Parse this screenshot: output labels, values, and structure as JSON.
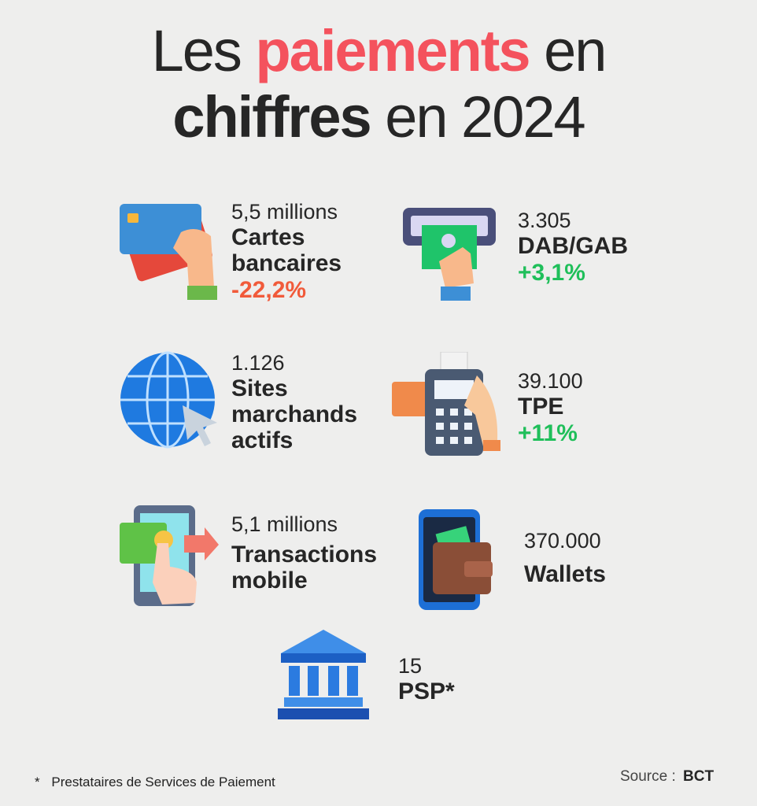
{
  "title": {
    "line1_prefix": "Les",
    "line1_accent": "paiements",
    "line1_suffix": "en",
    "line2_bold": "chiffres",
    "line2_rest": "en 2024"
  },
  "colors": {
    "accent": "#f4525d",
    "negative": "#f15a3a",
    "positive": "#1fbf5a"
  },
  "stats": [
    {
      "icon": "credit-card-icon",
      "value": "5,5 millions",
      "label1": "Cartes",
      "label2": "bancaires",
      "change": "-22,2%"
    },
    {
      "icon": "atm-icon",
      "value": "3.305",
      "label1": "DAB/GAB",
      "change": "+3,1%"
    },
    {
      "icon": "globe-icon",
      "value": "1.126",
      "label1": "Sites",
      "label2": "marchands",
      "label3": "actifs"
    },
    {
      "icon": "payment-terminal-icon",
      "value": "39.100",
      "label1": "TPE",
      "change": "+11%"
    },
    {
      "icon": "mobile-transfer-icon",
      "value": "5,1 millions",
      "label1": "Transactions",
      "label2": "mobile"
    },
    {
      "icon": "wallet-icon",
      "value": "370.000",
      "label1": "Wallets"
    },
    {
      "icon": "bank-icon",
      "value": "15",
      "label1": "PSP*"
    }
  ],
  "footer": {
    "asterisk": "*",
    "note": "Prestataires de Services de Paiement",
    "source_label": "Source :",
    "source_value": "BCT"
  }
}
